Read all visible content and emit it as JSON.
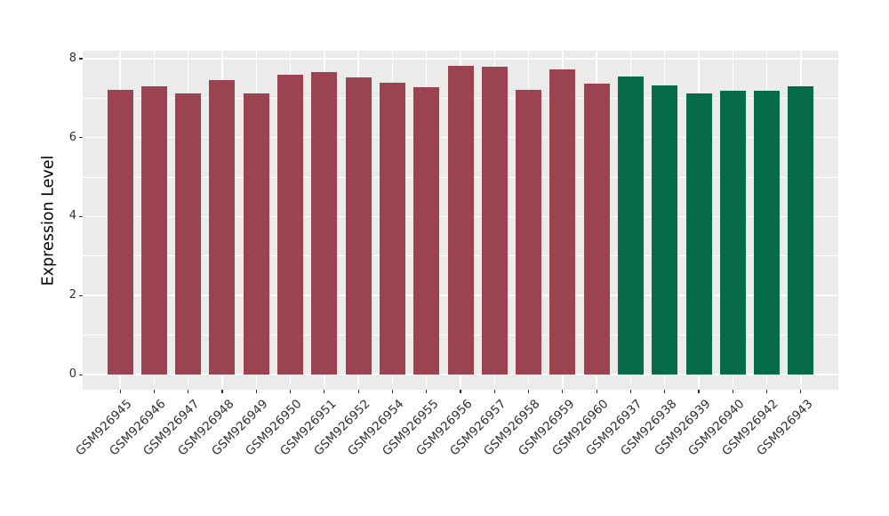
{
  "chart_data": {
    "type": "bar",
    "title": "",
    "xlabel": "",
    "ylabel": "Expression Level",
    "ylim": [
      0,
      8.2
    ],
    "yticks": [
      0,
      2,
      4,
      6,
      8
    ],
    "yticks_minor": [
      1,
      3,
      5,
      7
    ],
    "grid": "major and minor horizontal white gridlines, major vertical white gridlines on gray panel",
    "legend_position": "none",
    "panel_bg_color": "#EBEBEB",
    "gridline_color": "#FFFFFF",
    "tick_label_color": "#303030",
    "axis_title_color": "#000000",
    "group_colors": {
      "red": "#9C4351",
      "green": "#056B48"
    },
    "bars": [
      {
        "label": "GSM926945",
        "value": 7.22,
        "group": "red"
      },
      {
        "label": "GSM926946",
        "value": 7.3,
        "group": "red"
      },
      {
        "label": "GSM926947",
        "value": 7.13,
        "group": "red"
      },
      {
        "label": "GSM926948",
        "value": 7.45,
        "group": "red"
      },
      {
        "label": "GSM926949",
        "value": 7.13,
        "group": "red"
      },
      {
        "label": "GSM926950",
        "value": 7.6,
        "group": "red"
      },
      {
        "label": "GSM926951",
        "value": 7.66,
        "group": "red"
      },
      {
        "label": "GSM926952",
        "value": 7.53,
        "group": "red"
      },
      {
        "label": "GSM926954",
        "value": 7.39,
        "group": "red"
      },
      {
        "label": "GSM926955",
        "value": 7.28,
        "group": "red"
      },
      {
        "label": "GSM926956",
        "value": 7.82,
        "group": "red"
      },
      {
        "label": "GSM926957",
        "value": 7.79,
        "group": "red"
      },
      {
        "label": "GSM926958",
        "value": 7.21,
        "group": "red"
      },
      {
        "label": "GSM926959",
        "value": 7.72,
        "group": "red"
      },
      {
        "label": "GSM926960",
        "value": 7.36,
        "group": "red"
      },
      {
        "label": "GSM926937",
        "value": 7.55,
        "group": "green"
      },
      {
        "label": "GSM926938",
        "value": 7.33,
        "group": "green"
      },
      {
        "label": "GSM926939",
        "value": 7.11,
        "group": "green"
      },
      {
        "label": "GSM926940",
        "value": 7.18,
        "group": "green"
      },
      {
        "label": "GSM926942",
        "value": 7.19,
        "group": "green"
      },
      {
        "label": "GSM926943",
        "value": 7.3,
        "group": "green"
      }
    ]
  }
}
